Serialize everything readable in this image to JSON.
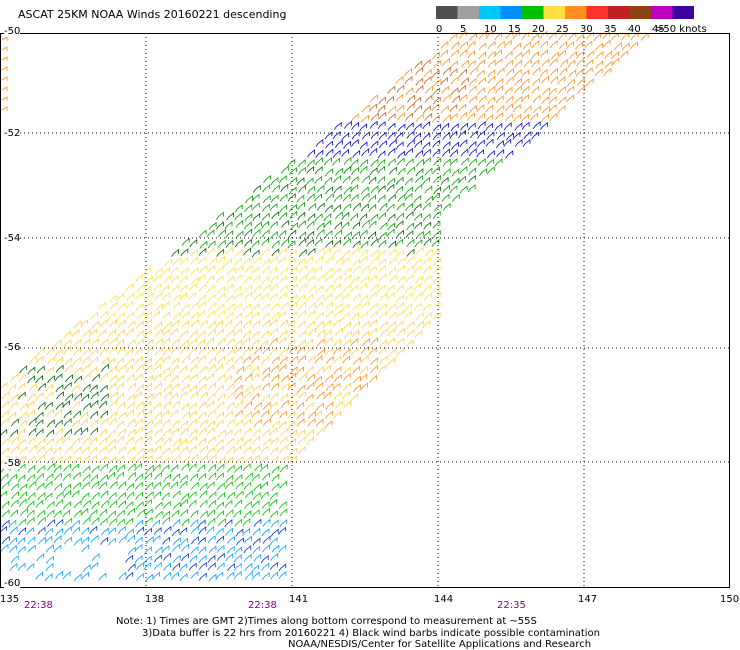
{
  "title": "ASCAT 25KM NOAA Winds 20160221 descending",
  "colorbar": {
    "labels": [
      "0",
      "5",
      "10",
      "15",
      "20",
      "25",
      "30",
      "35",
      "40",
      "45",
      ">50 knots"
    ],
    "colors": [
      "#505050",
      "#a0a0a0",
      "#00c8ff",
      "#0090ff",
      "#00c000",
      "#ffe040",
      "#ff9020",
      "#ff3030",
      "#c02020",
      "#8b4513",
      "#c000c0",
      "#4000a0"
    ]
  },
  "chart_data": {
    "type": "wind-barb-map",
    "x_axis": {
      "label": "",
      "ticks": [
        "135",
        "138",
        "141",
        "144",
        "147",
        "150"
      ],
      "range": [
        135,
        150
      ]
    },
    "y_axis": {
      "label": "",
      "ticks": [
        "-50",
        "-52",
        "-54",
        "-56",
        "-58",
        "-60"
      ],
      "range": [
        -60,
        -50
      ]
    },
    "grid": true,
    "speed_bands_knots": [
      {
        "name": "0-5",
        "color": "#505050"
      },
      {
        "name": "5-10",
        "color": "#a0a0a0"
      },
      {
        "name": "10-15",
        "color": "#00c8ff"
      },
      {
        "name": "15-20",
        "color": "#0090ff"
      },
      {
        "name": "20-25",
        "color": "#00c000"
      },
      {
        "name": "25-30",
        "color": "#ffe040"
      },
      {
        "name": "30-35",
        "color": "#ff9020"
      }
    ],
    "swath_regions": [
      {
        "lat_range": [
          -60,
          -59
        ],
        "dominant_speed": "10-20",
        "color": "#00a0ff"
      },
      {
        "lat_range": [
          -59,
          -58
        ],
        "dominant_speed": "20-25",
        "color": "#00c000"
      },
      {
        "lat_range": [
          -58,
          -55.5
        ],
        "dominant_speed": "25-35",
        "color": "#ffd040"
      },
      {
        "lat_range": [
          -55.5,
          -54.2
        ],
        "dominant_speed": "25-30",
        "color": "#ffe040"
      },
      {
        "lat_range": [
          -54.2,
          -52.5
        ],
        "dominant_speed": "20-25",
        "color": "#00a000"
      },
      {
        "lat_range": [
          -52.5,
          -51.8
        ],
        "dominant_speed": "15-20",
        "color": "#0000d0"
      },
      {
        "lat_range": [
          -51.8,
          -50
        ],
        "dominant_speed": "25-35",
        "color": "#ff9020"
      }
    ],
    "time_labels": [
      {
        "text": "22:38",
        "lon": 135.5
      },
      {
        "text": "22:38",
        "lon": 140.2
      },
      {
        "text": "22:35",
        "lon": 145.2
      }
    ]
  },
  "notes": {
    "line1": "Note: 1) Times are GMT 2)Times along bottom correspond to measurement at ~55S",
    "line2": "3)Data buffer is 22 hrs from 20160221 4) Black wind barbs indicate possible contamination",
    "line3": "NOAA/NESDIS/Center for Satellite Applications and Research"
  }
}
